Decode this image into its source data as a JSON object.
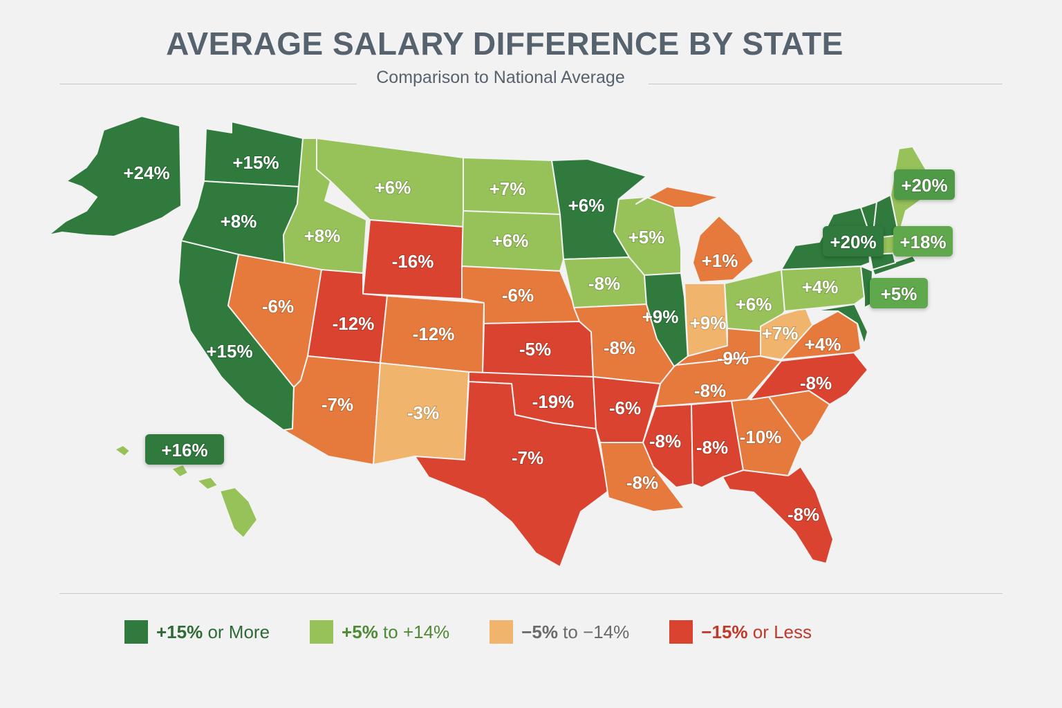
{
  "title": "AVERAGE SALARY DIFFERENCE BY STATE",
  "subtitle": "Comparison to National Average",
  "colors": {
    "dark_green": "#2f7a3c",
    "light_green": "#97c25a",
    "light_orange": "#f0b46c",
    "orange": "#e57a3c",
    "red": "#d9432f"
  },
  "legend": [
    {
      "bold": "+15%",
      "rest": " or More",
      "color": "#2f7a3c",
      "text_color": "#2f6b37"
    },
    {
      "bold": "+5%",
      "rest": " to +14%",
      "color": "#97c25a",
      "text_color": "#4f8a34"
    },
    {
      "bold": "−5%",
      "rest": " to −14%",
      "color": "#f0b46c",
      "text_color": "#6a6a6a"
    },
    {
      "bold": "−15%",
      "rest": " or Less",
      "color": "#d9432f",
      "text_color": "#c0392b"
    }
  ],
  "labels": {
    "AK": "+24%",
    "WA": "+15%",
    "OR": "+8%",
    "CA": "+15%",
    "HI": "+16%",
    "ID": "+8%",
    "MT": "+6%",
    "WY": "-16%",
    "NV": "-6%",
    "UT": "-12%",
    "CO": "-12%",
    "AZ": "-7%",
    "NM": "-3%",
    "ND": "+7%",
    "SD": "+6%",
    "NE": "-6%",
    "KS": "-5%",
    "OK": "-19%",
    "TX": "-7%",
    "MN": "+6%",
    "IA": "-8%",
    "MO": "-8%",
    "AR": "-6%",
    "LA": "-8%",
    "WI": "+5%",
    "IL": "+9%",
    "MI": "+1%",
    "IN": "+9%",
    "OH": "+6%",
    "KY": "-9%",
    "TN": "-8%",
    "MS": "-8%",
    "AL": "-8%",
    "GA": "-10%",
    "FL": "-8%",
    "SC": "-10%",
    "NC": "-8%",
    "VA": "+4%",
    "WV": "+7%",
    "PA": "+4%",
    "NY": "+20%",
    "NJ": "+5%",
    "MA": "+18%",
    "ME": "+20%"
  }
}
